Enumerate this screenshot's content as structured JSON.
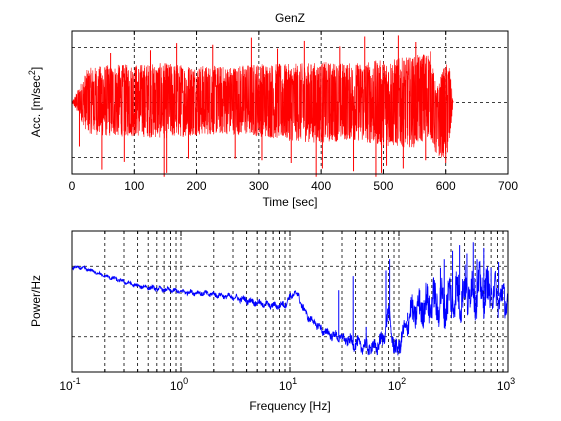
{
  "chart_data": [
    {
      "type": "line",
      "title": "GenZ",
      "xlabel": "Time [sec]",
      "ylabel_base": "Acc. [m/sec",
      "ylabel_sup": "2",
      "ylabel_tail": "]",
      "xlim": [
        0,
        700
      ],
      "x_ticks": [
        0,
        100,
        200,
        300,
        400,
        500,
        600,
        700
      ],
      "x_tick_labels": [
        "0",
        "100",
        "200",
        "300",
        "400",
        "500",
        "600",
        "700"
      ],
      "ylim": [
        -1.3,
        1.3
      ],
      "y_grid": [
        -1,
        0,
        1
      ],
      "grid": true,
      "series": [
        {
          "color": "#ff0000",
          "envelope": {
            "t": [
              0,
              25,
              50,
              100,
              150,
              200,
              250,
              300,
              350,
              400,
              450,
              500,
              550,
              575,
              585,
              595,
              605,
              612
            ],
            "upper": [
              0,
              0.62,
              0.68,
              0.7,
              0.72,
              0.68,
              0.66,
              0.72,
              0.7,
              0.74,
              0.72,
              0.78,
              0.84,
              0.96,
              0.24,
              0.6,
              0.78,
              0
            ],
            "lower": [
              0,
              -0.56,
              -0.62,
              -0.62,
              -0.66,
              -0.6,
              -0.58,
              -0.62,
              -0.7,
              -0.74,
              -0.68,
              -0.8,
              -0.82,
              -0.62,
              -1.02,
              -1.0,
              -0.98,
              0
            ]
          },
          "spikes": [
            {
              "t": 12,
              "y": -0.8
            },
            {
              "t": 48,
              "y": -1.22
            },
            {
              "t": 62,
              "y": 0.9
            },
            {
              "t": 84,
              "y": -1.08
            },
            {
              "t": 126,
              "y": 0.95
            },
            {
              "t": 148,
              "y": -1.35
            },
            {
              "t": 152,
              "y": -1.28
            },
            {
              "t": 168,
              "y": 1.08
            },
            {
              "t": 187,
              "y": -1.02
            },
            {
              "t": 226,
              "y": 1.05
            },
            {
              "t": 262,
              "y": -1.02
            },
            {
              "t": 288,
              "y": 1.18
            },
            {
              "t": 305,
              "y": -1.05
            },
            {
              "t": 330,
              "y": 0.98
            },
            {
              "t": 352,
              "y": -1.1
            },
            {
              "t": 373,
              "y": 1.12
            },
            {
              "t": 392,
              "y": -1.35
            },
            {
              "t": 402,
              "y": -1.2
            },
            {
              "t": 430,
              "y": 1.02
            },
            {
              "t": 452,
              "y": -1.25
            },
            {
              "t": 470,
              "y": 1.2
            },
            {
              "t": 488,
              "y": -1.35
            },
            {
              "t": 497,
              "y": -1.28
            },
            {
              "t": 505,
              "y": -1.15
            },
            {
              "t": 524,
              "y": 1.22
            },
            {
              "t": 532,
              "y": -1.2
            },
            {
              "t": 552,
              "y": 1.1
            },
            {
              "t": 568,
              "y": -1.05
            },
            {
              "t": 600,
              "y": -1.1
            }
          ]
        }
      ]
    },
    {
      "type": "line",
      "xlabel": "Frequency [Hz]",
      "ylabel": "Power/Hz",
      "xscale": "log",
      "xlim": [
        0.1,
        1000
      ],
      "x_ticks": [
        0.1,
        1,
        10,
        100,
        1000
      ],
      "x_tick_base": [
        "10",
        "10",
        "10",
        "10",
        "10"
      ],
      "x_tick_exp": [
        "-1",
        "0",
        "1",
        "2",
        "3"
      ],
      "ylim": [
        0,
        1
      ],
      "y_grid": [
        0.25,
        0.75
      ],
      "grid": true,
      "series": [
        {
          "color": "#0000ff",
          "trend": {
            "f": [
              0.1,
              0.12,
              0.15,
              0.2,
              0.25,
              0.3,
              0.4,
              0.5,
              0.6,
              0.8,
              1,
              1.5,
              2,
              3,
              4,
              5,
              6,
              7,
              8,
              9,
              10,
              11,
              12,
              13,
              15,
              18,
              20,
              25,
              30,
              35,
              40,
              50,
              60,
              70,
              75,
              80,
              85,
              90,
              95,
              100,
              110,
              120,
              130,
              150,
              200,
              250,
              300,
              400,
              500,
              700,
              1000
            ],
            "y": [
              0.74,
              0.74,
              0.72,
              0.68,
              0.66,
              0.64,
              0.61,
              0.6,
              0.59,
              0.58,
              0.57,
              0.56,
              0.55,
              0.53,
              0.51,
              0.49,
              0.48,
              0.47,
              0.47,
              0.48,
              0.53,
              0.56,
              0.54,
              0.46,
              0.38,
              0.33,
              0.29,
              0.26,
              0.24,
              0.22,
              0.2,
              0.18,
              0.17,
              0.22,
              0.3,
              0.42,
              0.3,
              0.18,
              0.14,
              0.2,
              0.26,
              0.36,
              0.42,
              0.44,
              0.5,
              0.48,
              0.52,
              0.56,
              0.58,
              0.57,
              0.5
            ],
            "noise": [
              0.01,
              0.01,
              0.01,
              0.01,
              0.012,
              0.012,
              0.012,
              0.014,
              0.014,
              0.014,
              0.014,
              0.016,
              0.016,
              0.018,
              0.02,
              0.02,
              0.02,
              0.02,
              0.022,
              0.022,
              0.022,
              0.022,
              0.024,
              0.024,
              0.024,
              0.026,
              0.026,
              0.03,
              0.03,
              0.035,
              0.04,
              0.045,
              0.05,
              0.05,
              0.05,
              0.05,
              0.055,
              0.06,
              0.06,
              0.06,
              0.07,
              0.08,
              0.09,
              0.1,
              0.12,
              0.13,
              0.14,
              0.14,
              0.14,
              0.12,
              0.1
            ]
          },
          "spikes": [
            {
              "f": 28,
              "y": 0.58
            },
            {
              "f": 38,
              "y": 0.68
            },
            {
              "f": 50,
              "y": 0.32
            },
            {
              "f": 76,
              "y": 0.72
            },
            {
              "f": 82,
              "y": 0.8
            },
            {
              "f": 120,
              "y": 0.42
            },
            {
              "f": 155,
              "y": 0.58
            },
            {
              "f": 240,
              "y": 0.74
            },
            {
              "f": 260,
              "y": 0.8
            },
            {
              "f": 310,
              "y": 0.86
            },
            {
              "f": 360,
              "y": 0.9
            },
            {
              "f": 420,
              "y": 0.84
            },
            {
              "f": 480,
              "y": 0.92
            },
            {
              "f": 520,
              "y": 0.8
            },
            {
              "f": 600,
              "y": 0.88
            },
            {
              "f": 700,
              "y": 0.74
            },
            {
              "f": 820,
              "y": 0.78
            }
          ]
        }
      ]
    }
  ]
}
